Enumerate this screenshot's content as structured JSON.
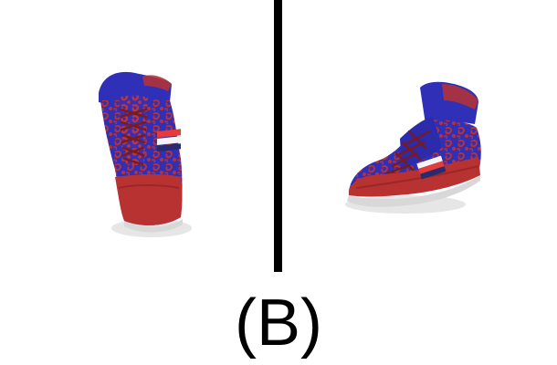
{
  "caption": "(B)",
  "images": {
    "left_shoe_icon": "high-top-sneaker-icon",
    "right_shoe_icon": "high-top-sneaker-icon"
  },
  "colors": {
    "background": "#ffffff",
    "divider": "#000000",
    "shoe_blue": "#2f2fb8",
    "shoe_red": "#b83232",
    "stripe_white": "#f4f4f4",
    "stripe_red": "#e53b3b",
    "stripe_navy": "#2a2a6f",
    "sole": "#d8d8d8"
  }
}
